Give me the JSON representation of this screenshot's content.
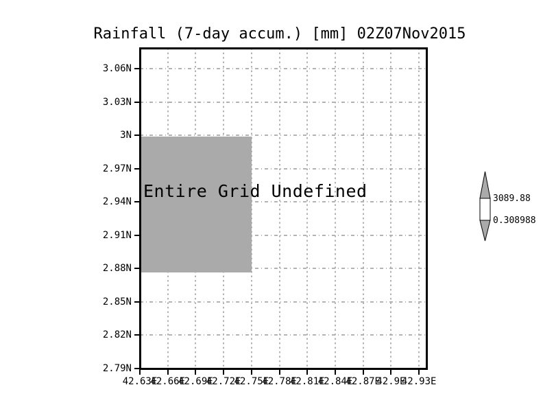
{
  "title": "Rainfall (7-day accum.) [mm] 02Z07Nov2015",
  "chart_data": {
    "type": "heatmap",
    "title": "Rainfall (7-day accum.) [mm] 02Z07Nov2015",
    "variable": "Rainfall (7-day accum.)",
    "units": "mm",
    "valid_time": "02Z07Nov2015",
    "status_annotation": "Entire Grid Undefined",
    "x_axis": {
      "tick_labels": [
        "42.63E",
        "42.66E",
        "42.69E",
        "42.72E",
        "42.75E",
        "42.78E",
        "42.81E",
        "42.84E",
        "42.87E",
        "42.9E",
        "42.93E"
      ],
      "tick_values": [
        42.63,
        42.66,
        42.69,
        42.72,
        42.75,
        42.78,
        42.81,
        42.84,
        42.87,
        42.9,
        42.93
      ],
      "range": [
        42.63,
        42.938
      ]
    },
    "y_axis": {
      "tick_labels": [
        "3.06N",
        "3.03N",
        "3N",
        "2.97N",
        "2.94N",
        "2.91N",
        "2.88N",
        "2.85N",
        "2.82N",
        "2.79N"
      ],
      "tick_values": [
        3.06,
        3.03,
        3.0,
        2.97,
        2.94,
        2.91,
        2.88,
        2.85,
        2.82,
        2.79
      ],
      "range": [
        2.79,
        3.0785
      ]
    },
    "grid": true,
    "values": null,
    "undefined_region": {
      "lon": [
        42.63,
        42.75
      ],
      "lat": [
        2.8765,
        2.9985
      ]
    },
    "colorbar": {
      "max_label": "3089.88",
      "min_label": "0.308988"
    }
  },
  "colors": {
    "background": "#ffffff",
    "undefined_fill": "#aaaaaa",
    "gridline": "#b3b3b3",
    "frame": "#000000",
    "colorbar_arrow_fill": "#aaaaaa",
    "colorbar_box_fill": "#ffffff"
  }
}
